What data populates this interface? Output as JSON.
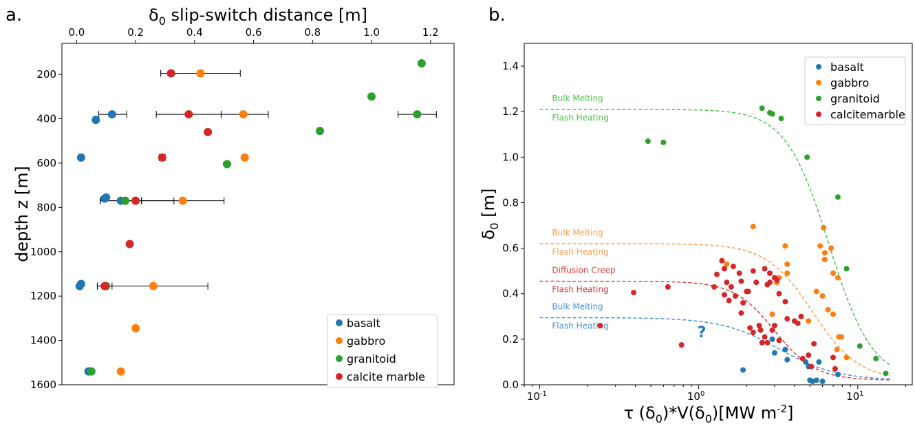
{
  "colors": {
    "basalt": "#1f77b4",
    "gabbro": "#ff7f0e",
    "granitoid": "#2ca02c",
    "marble": "#d62728",
    "curve_granitoid": "#4cc34c",
    "curve_gabbro": "#ff9c4a",
    "curve_marble": "#e43b3b",
    "curve_basalt": "#4a90d9"
  },
  "chart_data": [
    {
      "type": "scatter",
      "panel_label": "a.",
      "xlabel_main": "δ",
      "xlabel_sub": "0",
      "xlabel_rest": " slip-switch distance  [m]",
      "ylabel": "depth z [m]",
      "xlim": [
        -0.05,
        1.28
      ],
      "ylim": [
        1600,
        60
      ],
      "y_inverted": true,
      "xticks": [
        0.0,
        0.2,
        0.4,
        0.6,
        0.8,
        1.0,
        1.2
      ],
      "xtick_labels": [
        "0.0",
        "0.2",
        "0.4",
        "0.6",
        "0.8",
        "1.0",
        "1.2"
      ],
      "yticks": [
        200,
        400,
        600,
        800,
        1000,
        1200,
        1400,
        1600
      ],
      "ytick_labels": [
        "200",
        "400",
        "600",
        "800",
        "1000",
        "1200",
        "1400",
        "1600"
      ],
      "legend_position": "lower-right",
      "legend": [
        "basalt",
        "gabbro",
        "granitoid",
        "calcite marble"
      ],
      "series": [
        {
          "name": "basalt",
          "color_key": "basalt",
          "points": [
            [
              0.12,
              380
            ],
            [
              0.065,
              405
            ],
            [
              0.015,
              575
            ],
            [
              0.1,
              755
            ],
            [
              0.095,
              760
            ],
            [
              0.15,
              770
            ],
            [
              0.015,
              1145
            ],
            [
              0.01,
              1155
            ],
            [
              0.045,
              1540
            ],
            [
              0.04,
              1540
            ]
          ]
        },
        {
          "name": "gabbro",
          "color_key": "gabbro",
          "points": [
            [
              0.42,
              195
            ],
            [
              0.565,
              380
            ],
            [
              0.57,
              575
            ],
            [
              0.36,
              770
            ],
            [
              0.26,
              1155
            ],
            [
              0.2,
              1345
            ],
            [
              0.15,
              1540
            ]
          ]
        },
        {
          "name": "granitoid",
          "color_key": "granitoid",
          "points": [
            [
              1.17,
              150
            ],
            [
              1.0,
              300
            ],
            [
              1.155,
              380
            ],
            [
              0.825,
              455
            ],
            [
              0.51,
              605
            ],
            [
              0.165,
              770
            ],
            [
              0.1,
              1155
            ],
            [
              0.05,
              1540
            ]
          ]
        },
        {
          "name": "calcite marble",
          "color_key": "marble",
          "points": [
            [
              0.32,
              195
            ],
            [
              0.38,
              380
            ],
            [
              0.445,
              460
            ],
            [
              0.29,
              575
            ],
            [
              0.2,
              770
            ],
            [
              0.18,
              965
            ],
            [
              0.095,
              1155
            ]
          ]
        }
      ],
      "errorbars": [
        {
          "y": 195,
          "xmin": 0.285,
          "xmax": 0.555
        },
        {
          "y": 380,
          "xmin": 0.27,
          "xmax": 0.49
        },
        {
          "y": 380,
          "xmin": 0.49,
          "xmax": 0.65
        },
        {
          "y": 380,
          "xmin": 0.075,
          "xmax": 0.17
        },
        {
          "y": 380,
          "xmin": 1.09,
          "xmax": 1.22
        },
        {
          "y": 575,
          "xmin": 0.28,
          "xmax": 0.3
        },
        {
          "y": 770,
          "xmin": 0.08,
          "xmax": 0.22
        },
        {
          "y": 770,
          "xmin": 0.22,
          "xmax": 0.5
        },
        {
          "y": 770,
          "xmin": 0.08,
          "xmax": 0.33
        },
        {
          "y": 1155,
          "xmin": 0.07,
          "xmax": 0.445
        },
        {
          "y": 1155,
          "xmin": 0.07,
          "xmax": 0.12
        }
      ]
    },
    {
      "type": "scatter",
      "panel_label": "b.",
      "xlabel": "τ (δ",
      "xlabel_sub1": "0",
      "xlabel_mid": ")*V(δ",
      "xlabel_sub2": "0",
      "xlabel_end": ")[MW m",
      "xlabel_sup": "-2",
      "xlabel_close": "]",
      "ylabel_main": "δ",
      "ylabel_sub": "0",
      "ylabel_rest": " [m]",
      "x_scale": "log",
      "xlim": [
        0.08,
        22
      ],
      "ylim": [
        0,
        1.5
      ],
      "xticks": [
        0.1,
        1,
        10
      ],
      "xtick_labels": [
        "10",
        "10",
        "10"
      ],
      "xtick_exponents": [
        "-1",
        "0",
        "1"
      ],
      "yticks": [
        0.0,
        0.2,
        0.4,
        0.6,
        0.8,
        1.0,
        1.2,
        1.4
      ],
      "ytick_labels": [
        "0.0",
        "0.2",
        "0.4",
        "0.6",
        "0.8",
        "1.0",
        "1.2",
        "1.4"
      ],
      "legend_position": "top-right",
      "legend": [
        "basalt",
        "gabbro",
        "granitoid",
        "calcitemarble"
      ],
      "annotation_question": "?",
      "curves": [
        {
          "color_key": "curve_granitoid",
          "top": 1.21,
          "label_top": "Bulk Melting",
          "label_bottom": "Flash Heating"
        },
        {
          "color_key": "curve_gabbro",
          "top": 0.62,
          "label_top": "Bulk Melting",
          "label_bottom": "Flash Heating"
        },
        {
          "color_key": "curve_marble",
          "top": 0.455,
          "label_top": "Diffusion Creep",
          "label_bottom": "Flash Heating"
        },
        {
          "color_key": "curve_basalt",
          "top": 0.295,
          "label_top": "Bulk Melting",
          "label_bottom": "Flash Heating"
        }
      ],
      "series": [
        {
          "name": "basalt",
          "color_key": "basalt",
          "points": [
            [
              1.9,
              0.065
            ],
            [
              2.9,
              0.2
            ],
            [
              3.0,
              0.14
            ],
            [
              3.5,
              0.155
            ],
            [
              3.6,
              0.11
            ],
            [
              4.7,
              0.1
            ],
            [
              4.9,
              0.08
            ],
            [
              5.2,
              0.015
            ],
            [
              5.5,
              0.02
            ],
            [
              5.7,
              0.1
            ],
            [
              6.0,
              0.015
            ],
            [
              7.5,
              0.045
            ],
            [
              5.0,
              0.02
            ]
          ]
        },
        {
          "name": "gabbro",
          "color_key": "gabbro",
          "points": [
            [
              1.5,
              0.53
            ],
            [
              2.2,
              0.695
            ],
            [
              2.9,
              0.31
            ],
            [
              3.1,
              0.45
            ],
            [
              3.2,
              0.47
            ],
            [
              3.5,
              0.61
            ],
            [
              3.6,
              0.53
            ],
            [
              3.6,
              0.49
            ],
            [
              4.9,
              0.28
            ],
            [
              5.5,
              0.41
            ],
            [
              5.8,
              0.61
            ],
            [
              6.1,
              0.69
            ],
            [
              6.2,
              0.58
            ],
            [
              6.0,
              0.39
            ],
            [
              6.5,
              0.33
            ],
            [
              6.8,
              0.6
            ],
            [
              7.0,
              0.31
            ],
            [
              7.0,
              0.49
            ],
            [
              7.4,
              0.155
            ],
            [
              7.5,
              0.47
            ],
            [
              7.6,
              0.21
            ],
            [
              7.9,
              0.21
            ],
            [
              8.5,
              0.12
            ],
            [
              6.2,
              0.55
            ]
          ]
        },
        {
          "name": "granitoid",
          "color_key": "granitoid",
          "points": [
            [
              0.48,
              1.07
            ],
            [
              0.6,
              1.065
            ],
            [
              2.5,
              1.215
            ],
            [
              2.8,
              1.195
            ],
            [
              2.9,
              1.19
            ],
            [
              3.3,
              1.17
            ],
            [
              4.8,
              1.0
            ],
            [
              7.5,
              0.825
            ],
            [
              8.5,
              0.51
            ],
            [
              10.3,
              0.17
            ],
            [
              13.0,
              0.115
            ],
            [
              15.0,
              0.05
            ]
          ]
        },
        {
          "name": "calcitemarble",
          "color_key": "marble",
          "points": [
            [
              0.24,
              0.26
            ],
            [
              0.39,
              0.405
            ],
            [
              0.64,
              0.43
            ],
            [
              0.78,
              0.175
            ],
            [
              1.25,
              0.43
            ],
            [
              1.3,
              0.485
            ],
            [
              1.4,
              0.545
            ],
            [
              1.45,
              0.51
            ],
            [
              1.5,
              0.45
            ],
            [
              1.55,
              0.37
            ],
            [
              1.6,
              0.43
            ],
            [
              1.65,
              0.52
            ],
            [
              1.7,
              0.39
            ],
            [
              1.8,
              0.49
            ],
            [
              1.85,
              0.455
            ],
            [
              1.85,
              0.315
            ],
            [
              1.9,
              0.36
            ],
            [
              2.0,
              0.41
            ],
            [
              2.05,
              0.41
            ],
            [
              2.1,
              0.25
            ],
            [
              2.2,
              0.5
            ],
            [
              2.3,
              0.45
            ],
            [
              2.4,
              0.26
            ],
            [
              2.45,
              0.24
            ],
            [
              2.5,
              0.185
            ],
            [
              2.6,
              0.51
            ],
            [
              2.7,
              0.185
            ],
            [
              2.7,
              0.44
            ],
            [
              2.8,
              0.49
            ],
            [
              2.8,
              0.45
            ],
            [
              2.9,
              0.24
            ],
            [
              3.0,
              0.47
            ],
            [
              3.0,
              0.26
            ],
            [
              3.1,
              0.46
            ],
            [
              3.2,
              0.4
            ],
            [
              3.2,
              0.195
            ],
            [
              3.5,
              0.365
            ],
            [
              3.6,
              0.29
            ],
            [
              4.0,
              0.28
            ],
            [
              4.2,
              0.27
            ],
            [
              4.4,
              0.3
            ],
            [
              4.5,
              0.115
            ],
            [
              4.9,
              0.13
            ],
            [
              5.1,
              0.08
            ],
            [
              5.3,
              0.18
            ],
            [
              7.0,
              0.12
            ],
            [
              7.2,
              0.07
            ],
            [
              2.2,
              0.23
            ],
            [
              1.45,
              0.395
            ],
            [
              2.6,
              0.21
            ]
          ]
        }
      ]
    }
  ],
  "legend_a": {
    "basalt": "basalt",
    "gabbro": "gabbro",
    "granitoid": "granitoid",
    "marble": "calcite marble"
  },
  "legend_b": {
    "basalt": "basalt",
    "gabbro": "gabbro",
    "granitoid": "granitoid",
    "marble": "calcitemarble"
  }
}
